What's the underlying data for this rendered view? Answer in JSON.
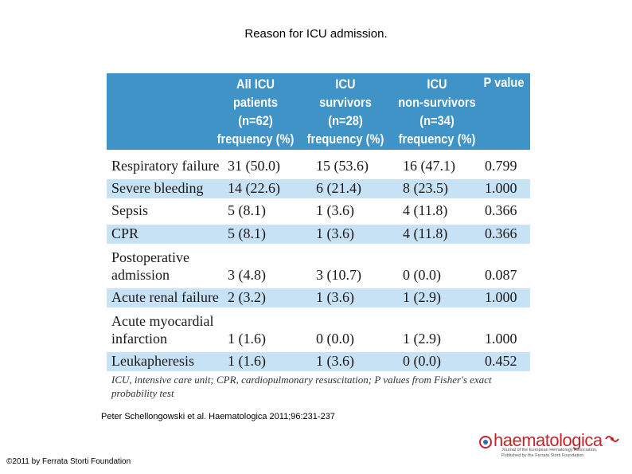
{
  "title": "Reason for ICU admission.",
  "table": {
    "headers": [
      "All ICU\npatients\n(n=62)\nfrequency (%)",
      "ICU\nsurvivors\n(n=28)\nfrequency (%)",
      "ICU\nnon-survivors\n(n=34)\nfrequency (%)",
      "P value"
    ],
    "rows": [
      {
        "label": "Respiratory failure",
        "all": "31 (50.0)",
        "surv": "15 (53.6)",
        "nonsurv": "16 (47.1)",
        "p": "0.799"
      },
      {
        "label": "Severe bleeding",
        "all": "14 (22.6)",
        "surv": "6 (21.4)",
        "nonsurv": "8 (23.5)",
        "p": "1.000"
      },
      {
        "label": "Sepsis",
        "all": "5 (8.1)",
        "surv": "1 (3.6)",
        "nonsurv": "4 (11.8)",
        "p": "0.366"
      },
      {
        "label": "CPR",
        "all": "5 (8.1)",
        "surv": "1 (3.6)",
        "nonsurv": "4 (11.8)",
        "p": "0.366"
      },
      {
        "label": "Postoperative\nadmission",
        "all": "3 (4.8)",
        "surv": "3 (10.7)",
        "nonsurv": "0 (0.0)",
        "p": "0.087"
      },
      {
        "label": "Acute renal failure",
        "all": "2 (3.2)",
        "surv": "1 (3.6)",
        "nonsurv": "1 (2.9)",
        "p": "1.000"
      },
      {
        "label": "Acute myocardial\ninfarction",
        "all": "1 (1.6)",
        "surv": "0 (0.0)",
        "nonsurv": "1 (2.9)",
        "p": "1.000"
      },
      {
        "label": "Leukapheresis",
        "all": "1 (1.6)",
        "surv": "1 (3.6)",
        "nonsurv": "0 (0.0)",
        "p": "0.452"
      }
    ],
    "footnote": "ICU, intensive care unit; CPR, cardiopulmonary resuscitation; P values  from Fisher's exact probability test"
  },
  "citation": "Peter Schellongowski et al. Haematologica 2011;96:231-237",
  "copyright": "©2011 by Ferrata Storti Foundation",
  "logo": {
    "word": "haematologica",
    "subtitle": "Journal of the European Hematology Association. Published by the Ferrata Storti Foundation"
  },
  "colors": {
    "header_bg": "#3f93c7",
    "shade": "#c6e2f4",
    "logo": "#c0262d"
  }
}
